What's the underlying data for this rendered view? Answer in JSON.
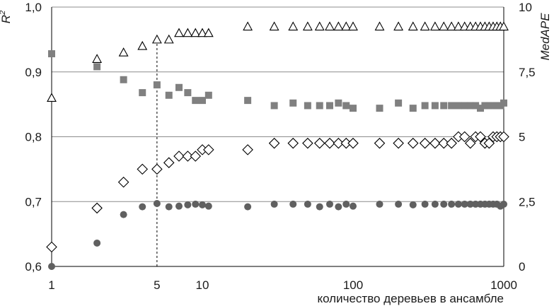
{
  "chart_data": {
    "type": "scatter",
    "x_axis": {
      "label": "количество деревьев в ансамбле",
      "scale": "log",
      "range": [
        1,
        1000
      ],
      "tick_values": [
        1,
        5,
        10,
        100,
        1000
      ],
      "tick_labels": [
        "1",
        "5",
        "10",
        "100",
        "1000"
      ]
    },
    "y_left": {
      "label": "R",
      "label_superscript": "2",
      "range": [
        0.6,
        1.0
      ],
      "tick_values": [
        0.6,
        0.7,
        0.8,
        0.9,
        1.0
      ],
      "tick_labels": [
        "0,6",
        "0,7",
        "0,8",
        "0,9",
        "1,0"
      ]
    },
    "y_right": {
      "label": "MedAPE",
      "range": [
        0,
        10
      ],
      "tick_values": [
        0,
        2.5,
        5,
        7.5,
        10
      ],
      "tick_labels": [
        "0",
        "2,5",
        "5",
        "7,5",
        "10"
      ]
    },
    "gridlines_y_left": [
      0.7,
      0.8,
      0.9,
      1.0
    ],
    "reference_line_x": 5,
    "series": [
      {
        "marker": "triangle-open",
        "color": "#000000",
        "axis": "left",
        "points": [
          [
            1,
            0.86
          ],
          [
            2,
            0.92
          ],
          [
            3,
            0.93
          ],
          [
            4,
            0.94
          ],
          [
            5,
            0.95
          ],
          [
            6,
            0.95
          ],
          [
            7,
            0.96
          ],
          [
            8,
            0.96
          ],
          [
            9,
            0.96
          ],
          [
            10,
            0.96
          ],
          [
            11,
            0.96
          ],
          [
            20,
            0.97
          ],
          [
            30,
            0.97
          ],
          [
            40,
            0.97
          ],
          [
            50,
            0.97
          ],
          [
            60,
            0.97
          ],
          [
            70,
            0.97
          ],
          [
            80,
            0.97
          ],
          [
            90,
            0.97
          ],
          [
            100,
            0.97
          ],
          [
            150,
            0.97
          ],
          [
            200,
            0.97
          ],
          [
            250,
            0.97
          ],
          [
            300,
            0.97
          ],
          [
            350,
            0.97
          ],
          [
            400,
            0.97
          ],
          [
            450,
            0.97
          ],
          [
            500,
            0.97
          ],
          [
            550,
            0.97
          ],
          [
            600,
            0.97
          ],
          [
            650,
            0.97
          ],
          [
            700,
            0.97
          ],
          [
            750,
            0.97
          ],
          [
            800,
            0.97
          ],
          [
            850,
            0.97
          ],
          [
            900,
            0.97
          ],
          [
            950,
            0.97
          ],
          [
            1000,
            0.97
          ]
        ]
      },
      {
        "marker": "square-filled",
        "color": "#808080",
        "axis": "right",
        "points": [
          [
            1,
            8.2
          ],
          [
            2,
            7.7
          ],
          [
            3,
            7.2
          ],
          [
            4,
            6.7
          ],
          [
            5,
            7.0
          ],
          [
            6,
            6.6
          ],
          [
            7,
            6.9
          ],
          [
            8,
            6.7
          ],
          [
            9,
            6.4
          ],
          [
            10,
            6.4
          ],
          [
            11,
            6.6
          ],
          [
            20,
            6.4
          ],
          [
            30,
            6.2
          ],
          [
            40,
            6.3
          ],
          [
            50,
            6.2
          ],
          [
            60,
            6.2
          ],
          [
            70,
            6.2
          ],
          [
            80,
            6.3
          ],
          [
            90,
            6.2
          ],
          [
            100,
            6.1
          ],
          [
            150,
            6.1
          ],
          [
            200,
            6.3
          ],
          [
            250,
            6.1
          ],
          [
            300,
            6.2
          ],
          [
            350,
            6.2
          ],
          [
            400,
            6.2
          ],
          [
            450,
            6.2
          ],
          [
            500,
            6.2
          ],
          [
            550,
            6.2
          ],
          [
            600,
            6.2
          ],
          [
            650,
            6.2
          ],
          [
            700,
            6.1
          ],
          [
            750,
            6.2
          ],
          [
            800,
            6.2
          ],
          [
            850,
            6.2
          ],
          [
            900,
            6.2
          ],
          [
            950,
            6.2
          ],
          [
            1000,
            6.3
          ]
        ]
      },
      {
        "marker": "diamond-open",
        "color": "#000000",
        "axis": "left",
        "points": [
          [
            1,
            0.63
          ],
          [
            2,
            0.69
          ],
          [
            3,
            0.73
          ],
          [
            4,
            0.75
          ],
          [
            5,
            0.75
          ],
          [
            6,
            0.76
          ],
          [
            7,
            0.77
          ],
          [
            8,
            0.77
          ],
          [
            9,
            0.77
          ],
          [
            10,
            0.78
          ],
          [
            11,
            0.78
          ],
          [
            20,
            0.78
          ],
          [
            30,
            0.79
          ],
          [
            40,
            0.79
          ],
          [
            50,
            0.79
          ],
          [
            60,
            0.79
          ],
          [
            70,
            0.79
          ],
          [
            80,
            0.79
          ],
          [
            90,
            0.79
          ],
          [
            100,
            0.79
          ],
          [
            150,
            0.79
          ],
          [
            200,
            0.79
          ],
          [
            250,
            0.79
          ],
          [
            300,
            0.79
          ],
          [
            350,
            0.79
          ],
          [
            400,
            0.79
          ],
          [
            450,
            0.79
          ],
          [
            500,
            0.8
          ],
          [
            550,
            0.8
          ],
          [
            600,
            0.79
          ],
          [
            650,
            0.8
          ],
          [
            700,
            0.8
          ],
          [
            750,
            0.79
          ],
          [
            800,
            0.79
          ],
          [
            850,
            0.8
          ],
          [
            900,
            0.8
          ],
          [
            950,
            0.8
          ],
          [
            1000,
            0.8
          ]
        ]
      },
      {
        "marker": "circle-filled",
        "color": "#606060",
        "axis": "left",
        "points": [
          [
            1,
            0.6
          ],
          [
            2,
            0.636
          ],
          [
            3,
            0.68
          ],
          [
            4,
            0.692
          ],
          [
            5,
            0.697
          ],
          [
            6,
            0.692
          ],
          [
            7,
            0.693
          ],
          [
            8,
            0.695
          ],
          [
            9,
            0.696
          ],
          [
            10,
            0.695
          ],
          [
            11,
            0.693
          ],
          [
            20,
            0.692
          ],
          [
            30,
            0.696
          ],
          [
            40,
            0.696
          ],
          [
            50,
            0.696
          ],
          [
            60,
            0.692
          ],
          [
            70,
            0.696
          ],
          [
            80,
            0.692
          ],
          [
            90,
            0.696
          ],
          [
            100,
            0.693
          ],
          [
            150,
            0.696
          ],
          [
            200,
            0.696
          ],
          [
            250,
            0.695
          ],
          [
            300,
            0.696
          ],
          [
            350,
            0.696
          ],
          [
            400,
            0.696
          ],
          [
            450,
            0.696
          ],
          [
            500,
            0.696
          ],
          [
            550,
            0.696
          ],
          [
            600,
            0.696
          ],
          [
            650,
            0.696
          ],
          [
            700,
            0.696
          ],
          [
            750,
            0.696
          ],
          [
            800,
            0.696
          ],
          [
            850,
            0.696
          ],
          [
            900,
            0.696
          ],
          [
            950,
            0.693
          ],
          [
            1000,
            0.696
          ]
        ]
      }
    ]
  }
}
